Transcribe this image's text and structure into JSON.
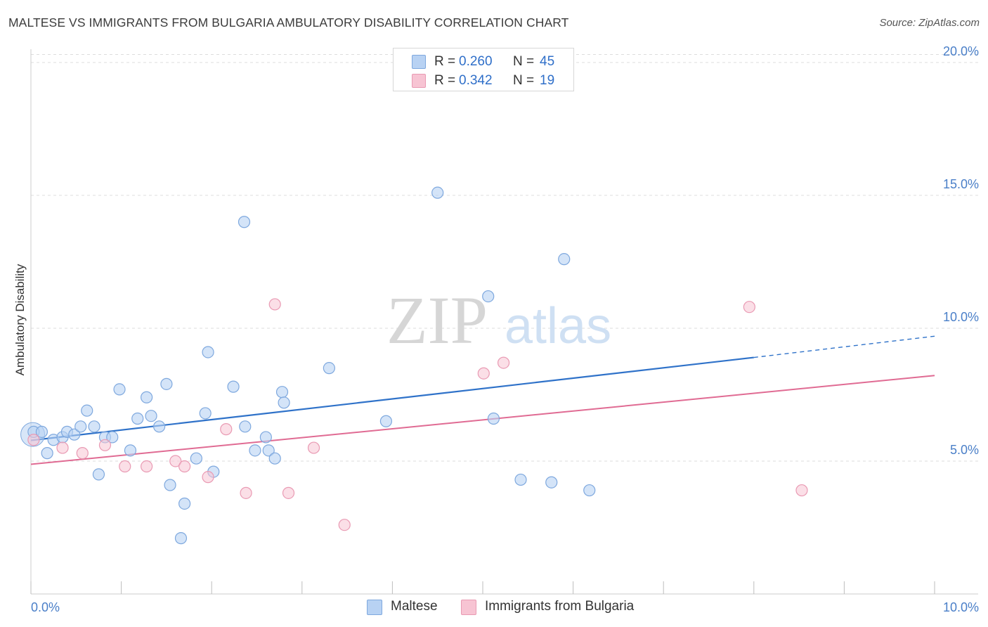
{
  "header": {
    "title": "MALTESE VS IMMIGRANTS FROM BULGARIA AMBULATORY DISABILITY CORRELATION CHART",
    "source": "Source: ZipAtlas.com"
  },
  "watermark": {
    "zip": "ZIP",
    "atlas": "atlas"
  },
  "colors": {
    "maltese_fill": "#b8d2f3",
    "maltese_stroke": "#7ea8de",
    "maltese_line": "#2f72c9",
    "bulgaria_fill": "#f7c4d3",
    "bulgaria_stroke": "#e99ab3",
    "bulgaria_line": "#e06b93",
    "grid": "#dddddd",
    "tick_text": "#4a7fc8"
  },
  "legend": {
    "rows": [
      {
        "r_label": "R =",
        "r_value": "0.260",
        "n_label": "N =",
        "n_value": "45"
      },
      {
        "r_label": "R =",
        "r_value": "0.342",
        "n_label": "N =",
        "n_value": "19"
      }
    ],
    "series_names": [
      "Maltese",
      "Immigrants from Bulgaria"
    ]
  },
  "chart_data": {
    "type": "scatter",
    "title": "MALTESE VS IMMIGRANTS FROM BULGARIA AMBULATORY DISABILITY CORRELATION CHART",
    "xlabel": "",
    "ylabel": "Ambulatory Disability",
    "xlim": [
      0,
      10
    ],
    "ylim": [
      0,
      20.5
    ],
    "x_tick_labels": [
      "0.0%",
      "10.0%"
    ],
    "y_ticks": [
      5,
      10,
      15,
      20
    ],
    "y_tick_labels": [
      "5.0%",
      "10.0%",
      "15.0%",
      "20.0%"
    ],
    "grid": true,
    "legend_position": "top-center",
    "series": [
      {
        "name": "Maltese",
        "points": [
          [
            0.03,
            6.1
          ],
          [
            0.12,
            6.1
          ],
          [
            0.18,
            5.3
          ],
          [
            0.25,
            5.8
          ],
          [
            0.35,
            5.9
          ],
          [
            0.4,
            6.1
          ],
          [
            0.48,
            6.0
          ],
          [
            0.55,
            6.3
          ],
          [
            0.62,
            6.9
          ],
          [
            0.7,
            6.3
          ],
          [
            0.75,
            4.5
          ],
          [
            0.82,
            5.9
          ],
          [
            0.9,
            5.9
          ],
          [
            0.98,
            7.7
          ],
          [
            1.1,
            5.4
          ],
          [
            1.18,
            6.6
          ],
          [
            1.28,
            7.4
          ],
          [
            1.33,
            6.7
          ],
          [
            1.42,
            6.3
          ],
          [
            1.5,
            7.9
          ],
          [
            1.54,
            4.1
          ],
          [
            1.66,
            2.1
          ],
          [
            1.7,
            3.4
          ],
          [
            1.83,
            5.1
          ],
          [
            1.93,
            6.8
          ],
          [
            1.96,
            9.1
          ],
          [
            2.02,
            4.6
          ],
          [
            2.24,
            7.8
          ],
          [
            2.36,
            14.0
          ],
          [
            2.37,
            6.3
          ],
          [
            2.48,
            5.4
          ],
          [
            2.6,
            5.9
          ],
          [
            2.63,
            5.4
          ],
          [
            2.7,
            5.1
          ],
          [
            2.78,
            7.6
          ],
          [
            2.8,
            7.2
          ],
          [
            3.3,
            8.5
          ],
          [
            3.93,
            6.5
          ],
          [
            4.5,
            15.1
          ],
          [
            5.06,
            11.2
          ],
          [
            5.12,
            6.6
          ],
          [
            5.42,
            4.3
          ],
          [
            5.76,
            4.2
          ],
          [
            5.9,
            12.6
          ],
          [
            6.18,
            3.9
          ]
        ],
        "trend": {
          "x": [
            0,
            8.0
          ],
          "y": [
            5.78,
            8.9
          ],
          "dashed_to": [
            10.0,
            9.7
          ]
        }
      },
      {
        "name": "Immigrants from Bulgaria",
        "points": [
          [
            0.03,
            5.8
          ],
          [
            0.35,
            5.5
          ],
          [
            0.57,
            5.3
          ],
          [
            0.82,
            5.6
          ],
          [
            1.04,
            4.8
          ],
          [
            1.28,
            4.8
          ],
          [
            1.6,
            5.0
          ],
          [
            1.7,
            4.8
          ],
          [
            1.96,
            4.4
          ],
          [
            2.16,
            6.2
          ],
          [
            2.38,
            3.8
          ],
          [
            2.7,
            10.9
          ],
          [
            2.85,
            3.8
          ],
          [
            3.13,
            5.5
          ],
          [
            3.47,
            2.6
          ],
          [
            5.01,
            8.3
          ],
          [
            5.23,
            8.7
          ],
          [
            7.95,
            10.8
          ],
          [
            8.53,
            3.9
          ]
        ],
        "trend": {
          "x": [
            0,
            10.0
          ],
          "y": [
            4.88,
            8.22
          ]
        }
      }
    ]
  }
}
